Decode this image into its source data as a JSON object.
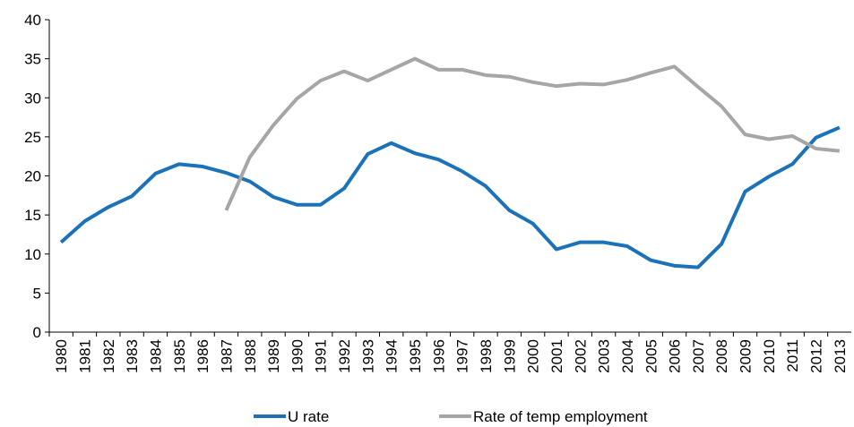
{
  "chart_data": {
    "type": "line",
    "categories": [
      "1980",
      "1981",
      "1982",
      "1983",
      "1984",
      "1985",
      "1986",
      "1987",
      "1988",
      "1989",
      "1990",
      "1991",
      "1992",
      "1993",
      "1994",
      "1995",
      "1996",
      "1997",
      "1998",
      "1999",
      "2000",
      "2001",
      "2002",
      "2003",
      "2004",
      "2005",
      "2006",
      "2007",
      "2008",
      "2009",
      "2010",
      "2011",
      "2012",
      "2013"
    ],
    "series": [
      {
        "name": "U rate",
        "color": "#1b72b8",
        "values": [
          11.5,
          14.2,
          16.0,
          17.4,
          20.3,
          21.5,
          21.2,
          20.4,
          19.3,
          17.3,
          16.3,
          16.3,
          18.4,
          22.8,
          24.2,
          22.9,
          22.1,
          20.6,
          18.7,
          15.6,
          13.9,
          10.6,
          11.5,
          11.5,
          11.0,
          9.2,
          8.5,
          8.3,
          11.3,
          18.0,
          19.9,
          21.5,
          24.9,
          26.2
        ]
      },
      {
        "name": "Rate of temp employment",
        "color": "#a6a6a6",
        "values": [
          null,
          null,
          null,
          null,
          null,
          null,
          null,
          15.6,
          22.4,
          26.5,
          29.9,
          32.2,
          33.4,
          32.2,
          33.6,
          35.0,
          33.6,
          33.6,
          32.9,
          32.7,
          32.0,
          31.5,
          31.8,
          31.7,
          32.3,
          33.2,
          34.0,
          31.4,
          28.9,
          25.3,
          24.7,
          25.1,
          23.5,
          23.2
        ]
      }
    ],
    "ylim": [
      0,
      40
    ],
    "yticks": [
      0,
      5,
      10,
      15,
      20,
      25,
      30,
      35,
      40
    ],
    "legend": "bottom"
  }
}
